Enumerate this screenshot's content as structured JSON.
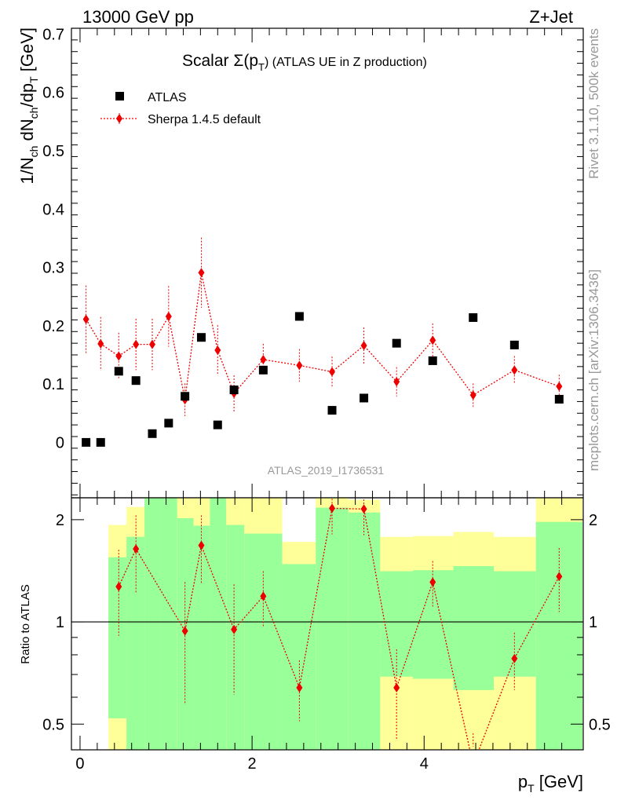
{
  "header": {
    "left": "13000 GeV pp",
    "right": "Z+Jet"
  },
  "side": {
    "rivet": "Rivet 3.1.10,  500k events",
    "mcplots": "mcplots.cern.ch [arXiv:1306.3436]"
  },
  "colors": {
    "mc": "#ee0000",
    "data": "#000000",
    "band_inner": "#99ff99",
    "band_outer": "#ffff99"
  },
  "chart_data": {
    "type": "scatter",
    "title_prefix": "Scalar Σ(p",
    "title_sub": "T",
    "title_suffix": ") (ATLAS UE in Z production)",
    "analysis": "ATLAS_2019_I1736531",
    "ylabel": "1/N_ch dN_ch/dp_T [GeV]",
    "xlabel": "p_T [GeV]",
    "xlim": [
      -0.1,
      5.85
    ],
    "ylim": [
      -0.095,
      0.71
    ],
    "xticks": [
      0,
      2,
      4
    ],
    "yticks": [
      0,
      0.1,
      0.2,
      0.3,
      0.4,
      0.5,
      0.6,
      0.7
    ],
    "ytick_labels": [
      "0",
      "0.1",
      "0.2",
      "0.3",
      "0.4",
      "0.5",
      "0.6",
      "0.7"
    ],
    "legend": {
      "data": "ATLAS",
      "mc": "Sherpa 1.4.5 default"
    },
    "series": [
      {
        "name": "ATLAS",
        "x": [
          0.07,
          0.24,
          0.45,
          0.65,
          0.84,
          1.03,
          1.22,
          1.41,
          1.6,
          1.79,
          2.13,
          2.55,
          2.93,
          3.3,
          3.68,
          4.1,
          4.57,
          5.05,
          5.57
        ],
        "y": [
          0.0,
          0.0,
          0.122,
          0.106,
          0.015,
          0.033,
          0.079,
          0.18,
          0.03,
          0.09,
          0.124,
          0.216,
          0.055,
          0.076,
          0.17,
          0.14,
          0.214,
          0.167,
          0.074
        ]
      },
      {
        "name": "Sherpa 1.4.5 default",
        "x": [
          0.07,
          0.24,
          0.45,
          0.65,
          0.84,
          1.03,
          1.22,
          1.41,
          1.6,
          1.79,
          2.13,
          2.55,
          2.93,
          3.3,
          3.68,
          4.1,
          4.57,
          5.05,
          5.57
        ],
        "y": [
          0.211,
          0.169,
          0.148,
          0.168,
          0.168,
          0.216,
          0.073,
          0.291,
          0.158,
          0.084,
          0.142,
          0.132,
          0.121,
          0.166,
          0.104,
          0.175,
          0.081,
          0.124,
          0.096
        ],
        "err": [
          0.058,
          0.046,
          0.04,
          0.044,
          0.044,
          0.052,
          0.028,
          0.06,
          0.043,
          0.031,
          0.027,
          0.028,
          0.026,
          0.031,
          0.025,
          0.029,
          0.02,
          0.024,
          0.02
        ]
      }
    ],
    "ratio": {
      "ylabel": "Ratio to ATLAS",
      "ylim": [
        0.42,
        2.32
      ],
      "yticks": [
        0.5,
        1,
        2
      ],
      "ytick_labels": [
        "0.5",
        "1",
        "2"
      ],
      "bins": [
        {
          "lo": 0.33,
          "hi": 0.54,
          "inner": [
            0.52,
            1.55
          ],
          "outer": [
            0.42,
            1.93
          ]
        },
        {
          "lo": 0.54,
          "hi": 0.75,
          "inner": [
            0.42,
            1.78
          ],
          "outer": [
            0.42,
            2.18
          ]
        },
        {
          "lo": 0.75,
          "hi": 0.94,
          "inner": [
            0.42,
            2.32
          ],
          "outer": [
            0.42,
            2.32
          ]
        },
        {
          "lo": 0.94,
          "hi": 1.13,
          "inner": [
            0.42,
            2.32
          ],
          "outer": [
            0.42,
            2.32
          ]
        },
        {
          "lo": 1.13,
          "hi": 1.32,
          "inner": [
            0.42,
            2.02
          ],
          "outer": [
            0.42,
            2.32
          ]
        },
        {
          "lo": 1.32,
          "hi": 1.51,
          "inner": [
            0.42,
            1.92
          ],
          "outer": [
            0.42,
            2.32
          ]
        },
        {
          "lo": 1.51,
          "hi": 1.7,
          "inner": [
            0.42,
            2.32
          ],
          "outer": [
            0.42,
            2.32
          ]
        },
        {
          "lo": 1.7,
          "hi": 1.91,
          "inner": [
            0.42,
            1.93
          ],
          "outer": [
            0.42,
            2.32
          ]
        },
        {
          "lo": 1.91,
          "hi": 2.35,
          "inner": [
            0.42,
            1.82
          ],
          "outer": [
            0.42,
            2.32
          ]
        },
        {
          "lo": 2.35,
          "hi": 2.74,
          "inner": [
            0.42,
            1.48
          ],
          "outer": [
            0.42,
            1.72
          ]
        },
        {
          "lo": 2.74,
          "hi": 3.12,
          "inner": [
            0.42,
            2.17
          ],
          "outer": [
            0.42,
            2.32
          ]
        },
        {
          "lo": 3.12,
          "hi": 3.49,
          "inner": [
            0.42,
            2.1
          ],
          "outer": [
            0.42,
            2.29
          ]
        },
        {
          "lo": 3.49,
          "hi": 3.87,
          "inner": [
            0.69,
            1.41
          ],
          "outer": [
            0.42,
            1.78
          ]
        },
        {
          "lo": 3.87,
          "hi": 4.34,
          "inner": [
            0.68,
            1.42
          ],
          "outer": [
            0.42,
            1.79
          ]
        },
        {
          "lo": 4.34,
          "hi": 4.81,
          "inner": [
            0.63,
            1.46
          ],
          "outer": [
            0.42,
            1.84
          ]
        },
        {
          "lo": 4.81,
          "hi": 5.3,
          "inner": [
            0.69,
            1.41
          ],
          "outer": [
            0.42,
            1.78
          ]
        },
        {
          "lo": 5.3,
          "hi": 5.84,
          "inner": [
            0.42,
            1.97
          ],
          "outer": [
            0.42,
            2.32
          ]
        }
      ],
      "x": [
        0.45,
        0.65,
        1.22,
        1.41,
        1.79,
        2.13,
        2.55,
        2.93,
        3.3,
        3.68,
        4.1,
        4.57,
        5.05,
        5.57
      ],
      "y": [
        1.27,
        1.64,
        0.94,
        1.68,
        0.95,
        1.19,
        0.64,
        2.16,
        2.15,
        0.64,
        1.31,
        0.38,
        0.78,
        1.36
      ],
      "err": [
        0.36,
        0.42,
        0.37,
        0.38,
        0.34,
        0.22,
        0.13,
        0.35,
        0.35,
        0.19,
        0.2,
        0.09,
        0.15,
        0.29
      ]
    }
  }
}
